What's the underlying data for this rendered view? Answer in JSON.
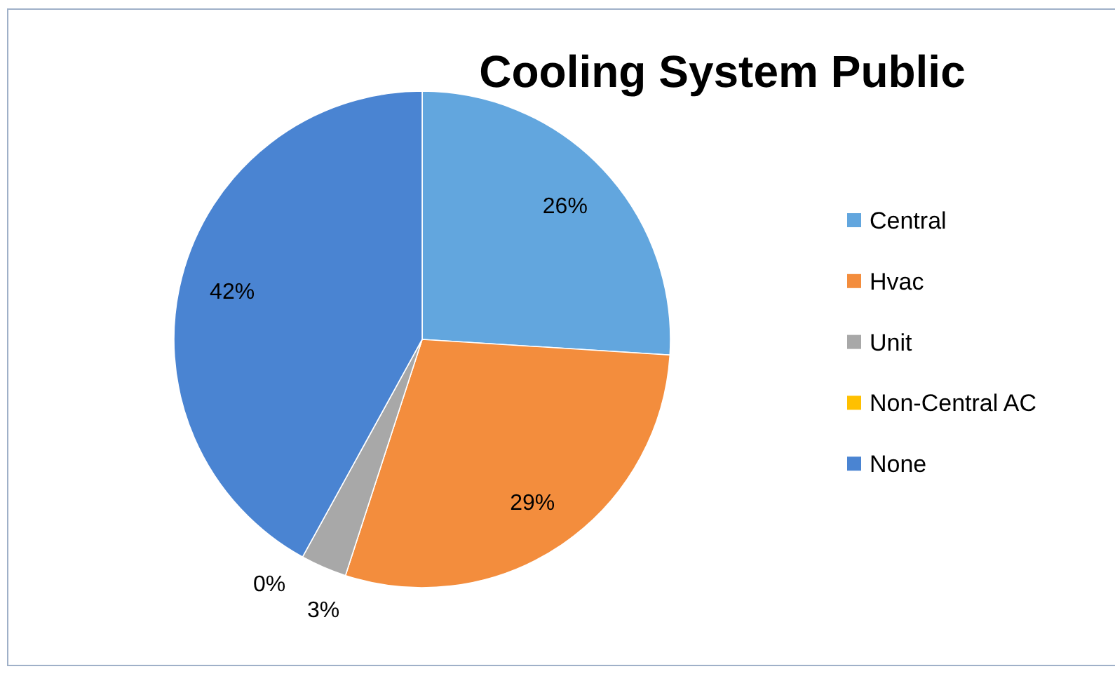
{
  "chart_data": {
    "type": "pie",
    "title": "Cooling System Public",
    "categories": [
      "Central",
      "Hvac",
      "Unit",
      "Non-Central AC",
      "None"
    ],
    "values": [
      26,
      29,
      3,
      0,
      42
    ],
    "colors": [
      "#62a6de",
      "#f38d3d",
      "#a8a8a8",
      "#ffc000",
      "#4a84d2"
    ],
    "value_labels": [
      "26%",
      "29%",
      "3%",
      "0%",
      "42%"
    ],
    "legend": "right"
  }
}
